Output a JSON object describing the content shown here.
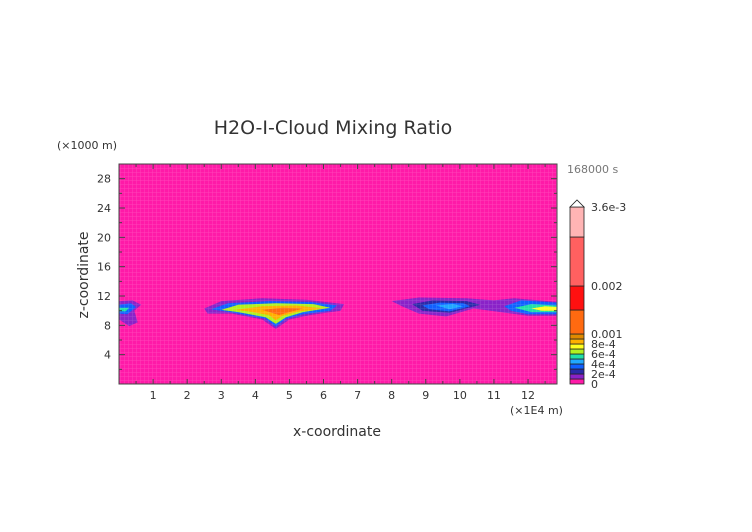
{
  "chart_data": {
    "type": "heatmap",
    "title": "H2O-I-Cloud Mixing Ratio",
    "xlabel": "x-coordinate",
    "ylabel": "z-coordinate",
    "x_unit": "(×1E4 m)",
    "y_unit": "(×1000 m)",
    "time_label": "168000 s",
    "xlim": [
      0,
      12.85
    ],
    "ylim": [
      0,
      30
    ],
    "x_ticks": [
      "1",
      "2",
      "3",
      "4",
      "5",
      "6",
      "7",
      "8",
      "9",
      "10",
      "11",
      "12"
    ],
    "y_ticks": [
      "4",
      "8",
      "12",
      "16",
      "20",
      "24",
      "28"
    ],
    "background_color": "#ff1aa8",
    "colorbar": {
      "levels": [
        0,
        0.0001,
        0.0002,
        0.0003,
        0.0004,
        0.0005,
        0.0006,
        0.0007,
        0.0008,
        0.0009,
        0.001,
        0.0015,
        0.002,
        0.003,
        0.0036
      ],
      "colors": [
        "#ff1aa8",
        "#8a22c8",
        "#2a2aa8",
        "#1060ff",
        "#20a8ff",
        "#20e0a8",
        "#b0f020",
        "#ffff20",
        "#ffb000",
        "#e08a00",
        "#ff6a10",
        "#ff1010",
        "#ff6060",
        "#ffb4b4"
      ],
      "labels": [
        {
          "value": 0,
          "text": "0"
        },
        {
          "value": 0.0002,
          "text": "2e-4"
        },
        {
          "value": 0.0004,
          "text": "4e-4"
        },
        {
          "value": 0.0006,
          "text": "6e-4"
        },
        {
          "value": 0.0008,
          "text": "8e-4"
        },
        {
          "value": 0.001,
          "text": "0.001"
        },
        {
          "value": 0.002,
          "text": "0.002"
        },
        {
          "value": 0.0036,
          "text": "3.6e-3"
        }
      ],
      "extend": "max"
    }
  }
}
